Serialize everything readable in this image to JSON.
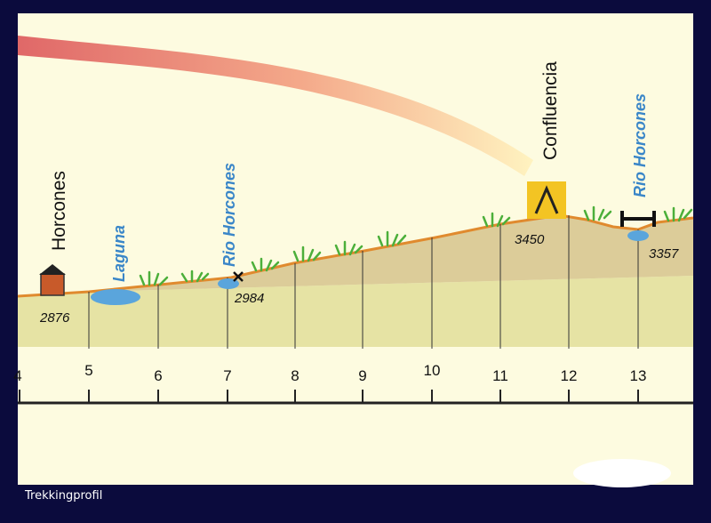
{
  "caption": "Trekkingprofil",
  "places": {
    "horcones": "Horcones",
    "confluencia": "Confluencia"
  },
  "water_labels": {
    "laguna": "Laguna",
    "rio_horcones_1": "Rio Horcones",
    "rio_horcones_2": "Rio Horcones"
  },
  "elevations": {
    "e2876": "2876",
    "e2984": "2984",
    "e3450": "3450",
    "e3357": "3357"
  },
  "axis": {
    "ticks": [
      "4",
      "5",
      "6",
      "7",
      "8",
      "9",
      "10",
      "11",
      "12",
      "13"
    ]
  },
  "colors": {
    "background": "#0b0b3d",
    "panel": "#fdfbe0",
    "terrain_upper": "#dccc99",
    "terrain_lower": "#e6e3a4",
    "profile_line": "#e08a2e",
    "water": "#5aa5dc",
    "grass": "#4caf3a",
    "arrow_start": "#e06868",
    "arrow_end": "#fff3c0",
    "camp_box": "#f3c423",
    "hut": "#c85a2a"
  },
  "icons": [
    "hut-icon",
    "camp-tent-icon",
    "bridge-icon",
    "crossing-x-icon",
    "grass-tuft-icon",
    "water-pond-icon"
  ]
}
